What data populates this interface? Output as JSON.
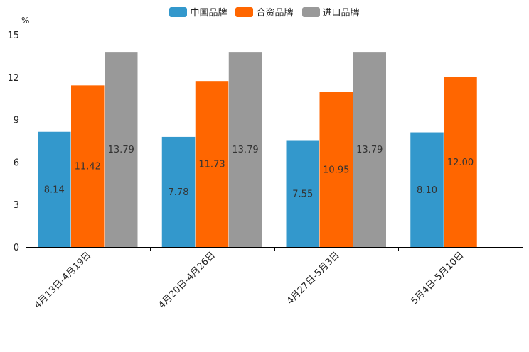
{
  "chart_data": {
    "type": "bar",
    "ylabel": "%",
    "ylim": [
      0,
      15
    ],
    "yticks": [
      0,
      3,
      6,
      9,
      12,
      15
    ],
    "categories": [
      "4月13日-4月19日",
      "4月20日-4月26日",
      "4月27日-5月3日",
      "5月4日-5月10日"
    ],
    "series": [
      {
        "name": "中国品牌",
        "color": "#3398cc",
        "values": [
          8.14,
          7.78,
          7.55,
          8.1
        ],
        "labels": [
          "8.14",
          "7.78",
          "7.55",
          "8.10"
        ]
      },
      {
        "name": "合资品牌",
        "color": "#ff6600",
        "values": [
          11.42,
          11.73,
          10.95,
          12.0
        ],
        "labels": [
          "11.42",
          "11.73",
          "10.95",
          "12.00"
        ]
      },
      {
        "name": "进口品牌",
        "color": "#999999",
        "values": [
          13.79,
          13.79,
          13.79,
          null
        ],
        "labels": [
          "13.79",
          "13.79",
          "13.79",
          ""
        ]
      }
    ],
    "legend_position": "top-center"
  }
}
